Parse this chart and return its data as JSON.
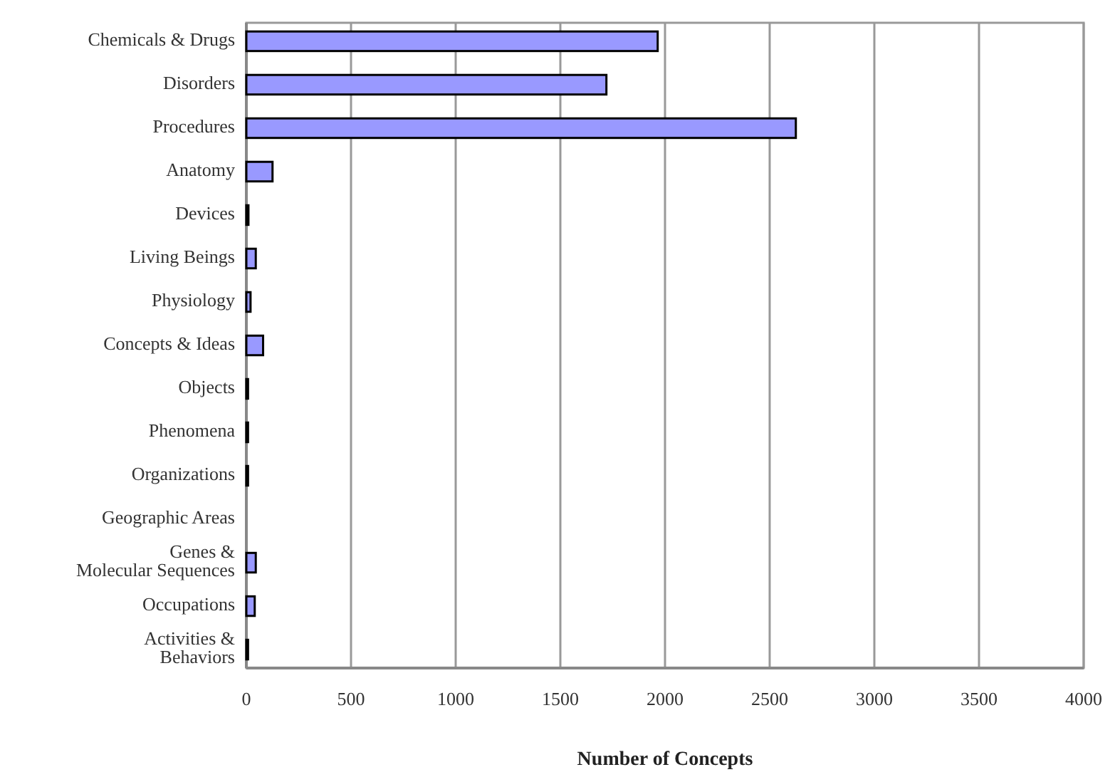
{
  "chart_data": {
    "type": "bar",
    "orientation": "horizontal",
    "xlabel": "Number of Concepts",
    "categories": [
      "Chemicals & Drugs",
      "Disorders",
      "Procedures",
      "Anatomy",
      "Devices",
      "Living Beings",
      "Physiology",
      "Concepts & Ideas",
      "Objects",
      "Phenomena",
      "Organizations",
      "Geographic Areas",
      "Genes &\nMolecular Sequences",
      "Occupations",
      "Activities &\nBehaviors"
    ],
    "values": [
      1965,
      1720,
      2625,
      125,
      10,
      45,
      20,
      80,
      8,
      8,
      8,
      0,
      45,
      40,
      8
    ],
    "color": "#9999ff",
    "xlim": [
      0,
      4000
    ],
    "xticks": [
      0,
      500,
      1000,
      1500,
      2000,
      2500,
      3000,
      3500,
      4000
    ],
    "grid": "x"
  }
}
